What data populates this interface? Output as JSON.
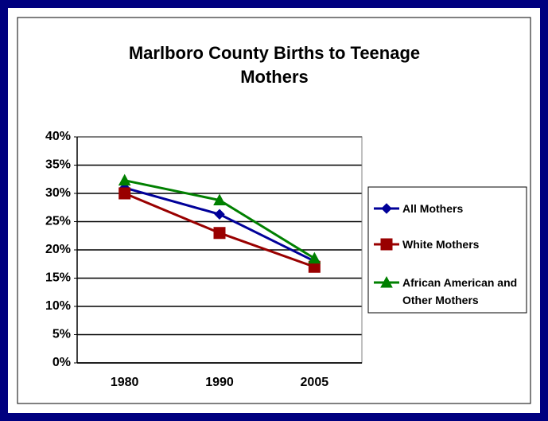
{
  "chart_data": {
    "type": "line",
    "title": "Marlboro County Births to Teenage Mothers",
    "categories": [
      "1980",
      "1990",
      "2005"
    ],
    "series": [
      {
        "name": "All Mothers",
        "color": "#000099",
        "marker": "diamond",
        "values": [
          31,
          26.3,
          18
        ]
      },
      {
        "name": "White Mothers",
        "color": "#990000",
        "marker": "square",
        "values": [
          30,
          23,
          17
        ]
      },
      {
        "name": "African American and Other Mothers",
        "color": "#008000",
        "marker": "triangle",
        "values": [
          32.3,
          28.8,
          18.5
        ]
      }
    ],
    "ylim": [
      0,
      40
    ],
    "yticks": [
      {
        "value": 0,
        "label": "0%"
      },
      {
        "value": 5,
        "label": "5%"
      },
      {
        "value": 10,
        "label": "10%"
      },
      {
        "value": 15,
        "label": "15%"
      },
      {
        "value": 20,
        "label": "20%"
      },
      {
        "value": 25,
        "label": "25%"
      },
      {
        "value": 30,
        "label": "30%"
      },
      {
        "value": 35,
        "label": "35%"
      },
      {
        "value": 40,
        "label": "40%"
      }
    ],
    "grid": true,
    "legend": "right"
  }
}
